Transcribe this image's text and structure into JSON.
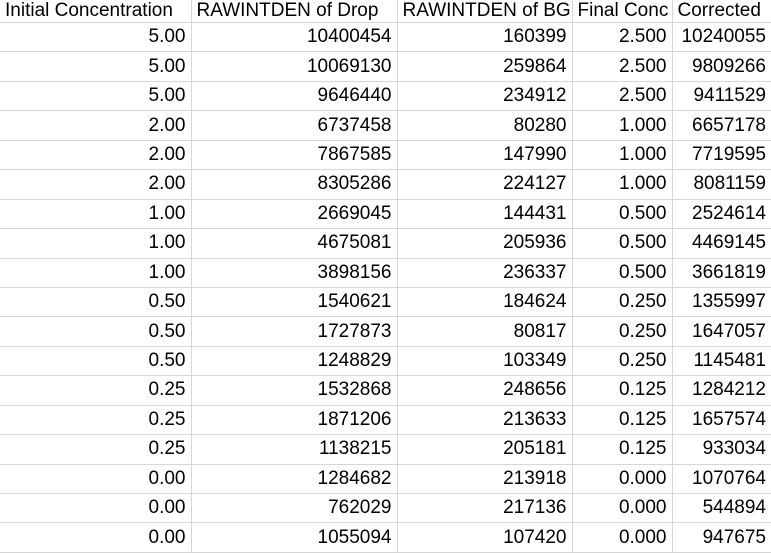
{
  "table": {
    "columns": [
      {
        "key": "initial_concentration",
        "label": "Initial Concentration"
      },
      {
        "key": "rawintden_drop",
        "label": "RAWINTDEN of Drop"
      },
      {
        "key": "rawintden_bg",
        "label": "RAWINTDEN of BG"
      },
      {
        "key": "final_conc",
        "label": "Final Conc"
      },
      {
        "key": "corrected",
        "label": "Corrected"
      }
    ],
    "rows": [
      [
        "5.00",
        "10400454",
        "160399",
        "2.500",
        "10240055"
      ],
      [
        "5.00",
        "10069130",
        "259864",
        "2.500",
        "9809266"
      ],
      [
        "5.00",
        "9646440",
        "234912",
        "2.500",
        "9411529"
      ],
      [
        "2.00",
        "6737458",
        "80280",
        "1.000",
        "6657178"
      ],
      [
        "2.00",
        "7867585",
        "147990",
        "1.000",
        "7719595"
      ],
      [
        "2.00",
        "8305286",
        "224127",
        "1.000",
        "8081159"
      ],
      [
        "1.00",
        "2669045",
        "144431",
        "0.500",
        "2524614"
      ],
      [
        "1.00",
        "4675081",
        "205936",
        "0.500",
        "4469145"
      ],
      [
        "1.00",
        "3898156",
        "236337",
        "0.500",
        "3661819"
      ],
      [
        "0.50",
        "1540621",
        "184624",
        "0.250",
        "1355997"
      ],
      [
        "0.50",
        "1727873",
        "80817",
        "0.250",
        "1647057"
      ],
      [
        "0.50",
        "1248829",
        "103349",
        "0.250",
        "1145481"
      ],
      [
        "0.25",
        "1532868",
        "248656",
        "0.125",
        "1284212"
      ],
      [
        "0.25",
        "1871206",
        "213633",
        "0.125",
        "1657574"
      ],
      [
        "0.25",
        "1138215",
        "205181",
        "0.125",
        "933034"
      ],
      [
        "0.00",
        "1284682",
        "213918",
        "0.000",
        "1070764"
      ],
      [
        "0.00",
        "762029",
        "217136",
        "0.000",
        "544894"
      ],
      [
        "0.00",
        "1055094",
        "107420",
        "0.000",
        "947675"
      ]
    ]
  },
  "colors": {
    "gridline": "#d6d6d6",
    "text": "#000000",
    "background": "#ffffff"
  }
}
